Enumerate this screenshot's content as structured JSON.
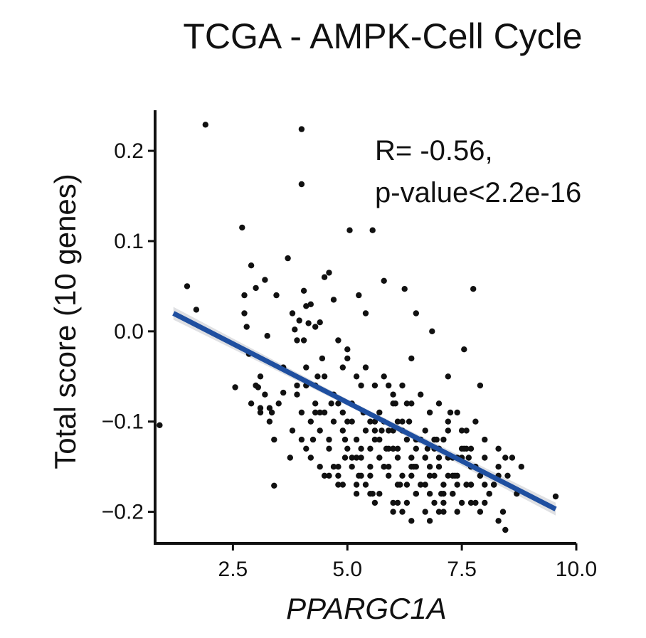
{
  "chart_data": {
    "type": "scatter",
    "title": "TCGA - AMPK-Cell Cycle",
    "xlabel": "PPARGC1A",
    "ylabel": "Total score (10 genes)",
    "xlim": [
      0.8,
      10.0
    ],
    "ylim": [
      -0.235,
      0.245
    ],
    "x_ticks": [
      2.5,
      5.0,
      7.5,
      10.0
    ],
    "x_tick_labels": [
      "2.5",
      "5.0",
      "7.5",
      "10.0"
    ],
    "y_ticks": [
      0.2,
      0.1,
      0.0,
      -0.1,
      -0.2
    ],
    "y_tick_labels": [
      "0.2",
      "0.1",
      "0.0",
      "−0.1",
      "−0.2"
    ],
    "annotations": [
      "R= -0.56,",
      "p-value<2.2e-16"
    ],
    "grid": false,
    "colors": {
      "points": "#111111",
      "regression_line": "#1f4fa0",
      "confidence_band": "#d4d6da"
    },
    "regression": {
      "x_start": 1.2,
      "y_start": 0.02,
      "x_end": 9.55,
      "y_end": -0.197
    },
    "points": {
      "x": [
        0.9,
        1.5,
        1.7,
        1.9,
        2.55,
        2.7,
        2.75,
        2.8,
        2.85,
        2.9,
        3.0,
        3.05,
        3.1,
        3.1,
        3.2,
        3.25,
        3.3,
        3.35,
        3.4,
        3.45,
        3.6,
        3.7,
        3.8,
        3.85,
        3.9,
        3.95,
        4.0,
        4.0,
        4.05,
        4.1,
        4.15,
        4.2,
        4.3,
        4.4,
        4.5,
        4.6,
        4.7,
        4.8,
        4.9,
        5.05,
        5.25,
        5.4,
        5.55,
        5.8,
        6.25,
        6.5,
        6.85,
        7.55,
        7.75,
        7.9,
        8.3,
        8.45,
        9.55,
        2.75,
        3.1,
        3.3,
        3.6,
        3.75,
        4.05,
        4.25,
        4.45,
        4.8,
        5.0,
        5.5,
        5.9,
        6.1,
        6.4,
        6.7,
        7.2,
        2.9,
        3.4,
        3.9,
        4.3,
        4.6,
        5.2,
        6.0,
        7.0,
        3.9,
        4.0,
        4.1,
        4.2,
        4.3,
        4.4,
        4.5,
        4.6,
        4.7,
        4.8,
        4.9,
        5.0,
        5.1,
        5.2,
        5.3,
        5.4,
        5.5,
        5.6,
        5.7,
        5.8,
        5.9,
        6.0,
        6.1,
        6.2,
        6.3,
        6.4,
        6.5,
        6.6,
        6.7,
        6.8,
        6.9,
        7.0,
        7.1,
        7.2,
        7.3,
        7.4,
        7.5,
        7.6,
        7.7,
        7.8,
        7.9,
        8.0,
        8.1,
        8.2,
        8.3,
        8.4,
        8.5,
        8.6,
        8.7,
        8.8,
        4.0,
        4.2,
        4.4,
        4.6,
        4.8,
        5.0,
        5.2,
        5.4,
        5.6,
        5.8,
        6.0,
        6.2,
        6.4,
        6.6,
        6.8,
        7.0,
        7.2,
        7.4,
        7.6,
        7.8,
        8.0,
        8.2,
        4.1,
        4.3,
        4.5,
        4.7,
        4.9,
        5.1,
        5.3,
        5.5,
        5.7,
        5.9,
        6.1,
        6.3,
        6.5,
        6.7,
        6.9,
        7.1,
        7.3,
        7.5,
        7.7,
        7.9,
        4.5,
        4.7,
        4.9,
        5.1,
        5.3,
        5.5,
        5.7,
        5.9,
        6.1,
        6.3,
        6.5,
        6.7,
        6.9,
        7.1,
        7.3,
        7.5,
        7.7,
        7.9,
        8.1,
        8.3,
        5.0,
        5.2,
        5.4,
        5.6,
        5.8,
        6.0,
        6.2,
        6.4,
        6.6,
        6.8,
        7.0,
        7.2,
        7.4,
        7.6,
        7.8,
        8.0,
        5.1,
        5.3,
        5.5,
        5.7,
        5.9,
        6.1,
        6.3,
        6.5,
        6.7,
        6.9,
        7.1,
        7.3,
        7.5,
        7.7,
        5.6,
        5.8,
        6.0,
        6.2,
        6.4,
        6.6,
        6.8,
        7.0,
        7.2,
        7.4,
        7.6,
        7.8,
        6.0,
        6.2,
        6.5,
        6.8,
        7.1,
        7.4,
        7.7,
        8.0,
        8.3,
        8.45,
        4.95,
        5.25,
        5.55,
        5.85,
        6.15,
        6.45,
        6.75,
        7.05,
        7.35,
        7.65,
        4.35,
        4.65,
        4.95,
        5.35,
        5.75,
        6.05,
        6.35,
        6.95,
        7.25,
        7.55,
        3.0,
        3.2,
        3.5,
        3.8,
        4.1,
        4.4,
        4.8,
        5.2,
        5.6,
        6.0,
        6.4
      ],
      "y": [
        -0.104,
        0.05,
        0.024,
        0.229,
        -0.062,
        0.115,
        0.04,
        0.005,
        -0.025,
        0.073,
        0.048,
        -0.062,
        -0.085,
        -0.09,
        0.057,
        -0.005,
        -0.085,
        -0.09,
        -0.171,
        0.04,
        -0.068,
        0.081,
        0.02,
        0.002,
        -0.01,
        0.012,
        0.224,
        0.163,
        0.045,
        0.028,
        0.009,
        0.03,
        0.005,
        0.01,
        0.06,
        0.065,
        0.035,
        -0.01,
        -0.04,
        0.112,
        0.04,
        0.02,
        0.112,
        0.056,
        0.047,
        0.02,
        0.0,
        -0.02,
        0.047,
        -0.06,
        -0.13,
        -0.14,
        -0.183,
        0.02,
        -0.05,
        -0.1,
        -0.04,
        -0.14,
        -0.01,
        -0.12,
        -0.03,
        -0.15,
        -0.02,
        -0.18,
        -0.06,
        -0.19,
        -0.03,
        -0.2,
        -0.05,
        -0.08,
        -0.12,
        -0.06,
        -0.09,
        -0.16,
        -0.17,
        -0.08,
        -0.2,
        -0.07,
        -0.09,
        -0.06,
        -0.1,
        -0.08,
        -0.11,
        -0.09,
        -0.12,
        -0.1,
        -0.08,
        -0.11,
        -0.13,
        -0.1,
        -0.12,
        -0.14,
        -0.11,
        -0.13,
        -0.1,
        -0.12,
        -0.15,
        -0.13,
        -0.11,
        -0.14,
        -0.16,
        -0.12,
        -0.15,
        -0.13,
        -0.17,
        -0.14,
        -0.16,
        -0.12,
        -0.15,
        -0.17,
        -0.14,
        -0.18,
        -0.16,
        -0.13,
        -0.17,
        -0.15,
        -0.19,
        -0.16,
        -0.14,
        -0.18,
        -0.17,
        -0.15,
        -0.2,
        -0.16,
        -0.14,
        -0.18,
        -0.15,
        -0.12,
        -0.14,
        -0.09,
        -0.13,
        -0.16,
        -0.1,
        -0.14,
        -0.17,
        -0.11,
        -0.15,
        -0.13,
        -0.1,
        -0.16,
        -0.12,
        -0.18,
        -0.14,
        -0.11,
        -0.17,
        -0.13,
        -0.15,
        -0.19,
        -0.17,
        -0.04,
        -0.06,
        -0.05,
        -0.07,
        -0.09,
        -0.08,
        -0.06,
        -0.1,
        -0.09,
        -0.11,
        -0.1,
        -0.08,
        -0.12,
        -0.11,
        -0.13,
        -0.12,
        -0.14,
        -0.11,
        -0.13,
        -0.16,
        -0.16,
        -0.15,
        -0.17,
        -0.14,
        -0.16,
        -0.15,
        -0.18,
        -0.16,
        -0.17,
        -0.19,
        -0.18,
        -0.17,
        -0.19,
        -0.2,
        -0.18,
        -0.19,
        -0.17,
        -0.2,
        -0.18,
        -0.21,
        -0.03,
        -0.05,
        -0.04,
        -0.06,
        -0.05,
        -0.07,
        -0.06,
        -0.08,
        -0.07,
        -0.09,
        -0.08,
        -0.1,
        -0.09,
        -0.11,
        -0.1,
        -0.12,
        -0.15,
        -0.13,
        -0.16,
        -0.14,
        -0.15,
        -0.13,
        -0.17,
        -0.15,
        -0.14,
        -0.16,
        -0.18,
        -0.16,
        -0.14,
        -0.17,
        -0.12,
        -0.1,
        -0.13,
        -0.11,
        -0.14,
        -0.12,
        -0.15,
        -0.13,
        -0.16,
        -0.14,
        -0.17,
        -0.15,
        -0.19,
        -0.2,
        -0.18,
        -0.21,
        -0.19,
        -0.2,
        -0.19,
        -0.17,
        -0.16,
        -0.22,
        -0.14,
        -0.16,
        -0.18,
        -0.13,
        -0.17,
        -0.15,
        -0.13,
        -0.18,
        -0.16,
        -0.14,
        -0.05,
        -0.08,
        -0.12,
        -0.09,
        -0.11,
        -0.08,
        -0.1,
        -0.12,
        -0.09,
        -0.13,
        -0.06,
        -0.07,
        -0.08,
        -0.11,
        -0.13,
        -0.15,
        -0.17,
        -0.18,
        -0.19,
        -0.2,
        -0.21
      ]
    }
  }
}
